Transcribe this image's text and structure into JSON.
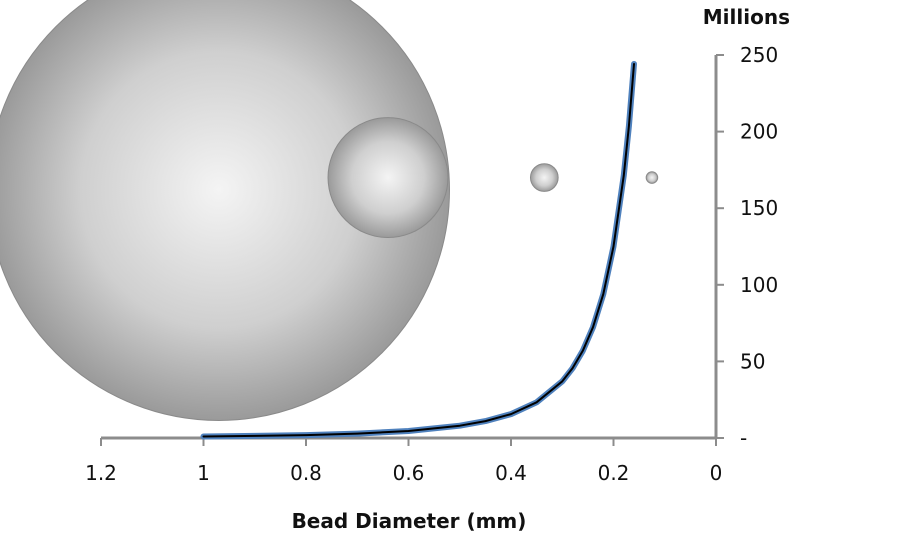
{
  "chart_data": {
    "type": "line",
    "xlabel": "Bead Diameter (mm)",
    "y_unit_label": "Millions",
    "x_reversed": true,
    "xlim": [
      1.2,
      0
    ],
    "ylim": [
      0,
      250
    ],
    "x_ticks": [
      "1.2",
      "1",
      "0.8",
      "0.6",
      "0.4",
      "0.2",
      "0"
    ],
    "y_ticks": [
      "-",
      "50",
      "100",
      "150",
      "200",
      "250"
    ],
    "grid": false,
    "legend": "none",
    "series": [
      {
        "color": "#4f81bd",
        "x": [
          1.0,
          0.9,
          0.8,
          0.7,
          0.6,
          0.5,
          0.45,
          0.4,
          0.35,
          0.3,
          0.28,
          0.26,
          0.24,
          0.22,
          0.2,
          0.18,
          0.17,
          0.16
        ],
        "y": [
          1.0,
          1.4,
          1.9,
          2.9,
          4.6,
          8.0,
          11.0,
          15.6,
          23.3,
          37.0,
          45.5,
          56.9,
          72.3,
          93.9,
          125.0,
          171.5,
          203.5,
          244.1
        ]
      }
    ],
    "bead_illustrations": [
      {
        "x": 0.97,
        "y": 162,
        "diameter": 1.0
      },
      {
        "x": 0.64,
        "y": 170,
        "diameter": 0.26
      },
      {
        "x": 0.335,
        "y": 170,
        "diameter": 0.06
      },
      {
        "x": 0.125,
        "y": 170,
        "diameter": 0.025
      }
    ]
  }
}
